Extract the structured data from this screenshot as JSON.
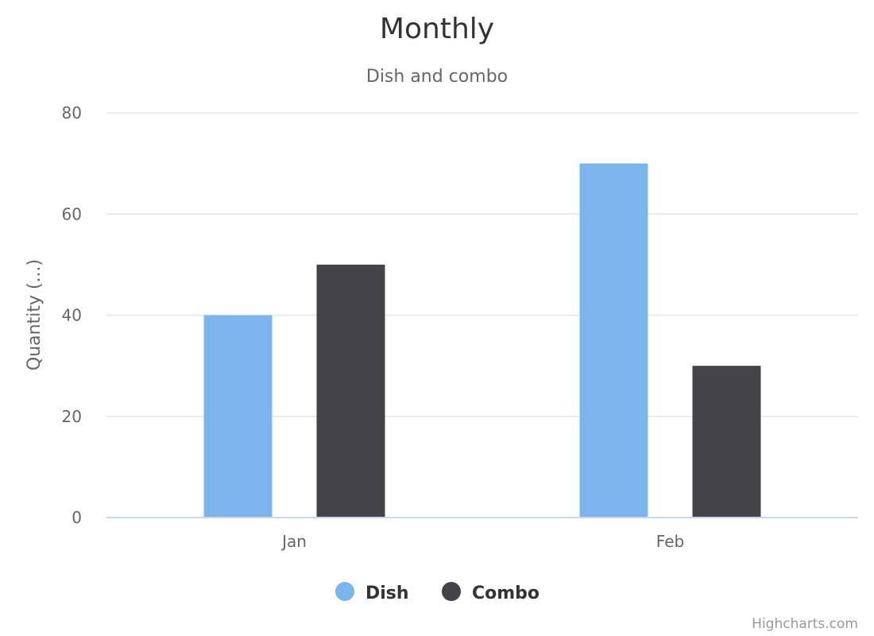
{
  "chart_data": {
    "type": "bar",
    "title": "Monthly",
    "subtitle": "Dish and combo",
    "ylabel": "Quantity (...)",
    "xlabel": "",
    "categories": [
      "Jan",
      "Feb"
    ],
    "ylim": [
      0,
      80
    ],
    "yticks": [
      0,
      20,
      40,
      60,
      80
    ],
    "grid": true,
    "legend_position": "bottom-center",
    "series": [
      {
        "name": "Dish",
        "color": "#7cb5ec",
        "values": [
          40,
          70
        ]
      },
      {
        "name": "Combo",
        "color": "#434348",
        "values": [
          50,
          30
        ]
      }
    ]
  },
  "credits": "Highcharts.com"
}
